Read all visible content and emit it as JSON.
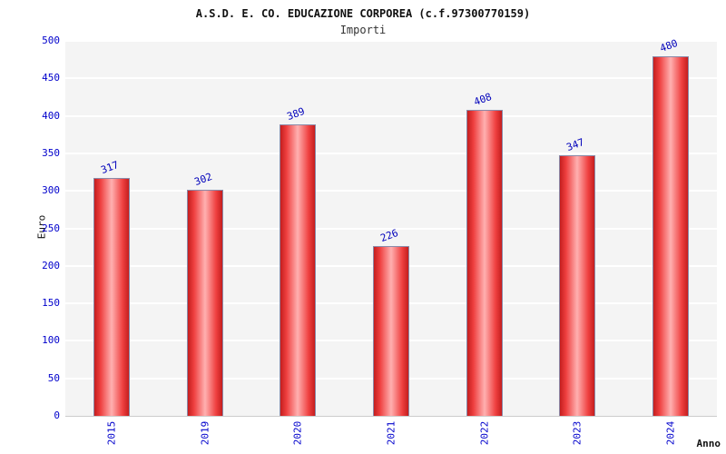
{
  "header": {
    "title": "A.S.D. E. CO. EDUCAZIONE CORPOREA (c.f.97300770159)",
    "subtitle": "Importi"
  },
  "axes": {
    "y_label": "Euro",
    "x_label": "Anno"
  },
  "chart_data": {
    "type": "bar",
    "title": "A.S.D. E. CO. EDUCAZIONE CORPOREA (c.f.97300770159)",
    "subtitle": "Importi",
    "categories": [
      "2015",
      "2019",
      "2020",
      "2021",
      "2022",
      "2023",
      "2024"
    ],
    "values": [
      317,
      302,
      389,
      226,
      408,
      347,
      480
    ],
    "xlabel": "Anno",
    "ylabel": "Euro",
    "ylim": [
      0,
      500
    ],
    "ytick_step": 50,
    "grid": true,
    "legend": "none",
    "colors": {
      "bar_edge": "#c41e1e",
      "bar_mid": "#ffb0b0",
      "value_label": "#0000bb",
      "tick_label": "#0000cc",
      "plot_bg": "#f4f4f4",
      "grid_line": "#ffffff"
    }
  }
}
